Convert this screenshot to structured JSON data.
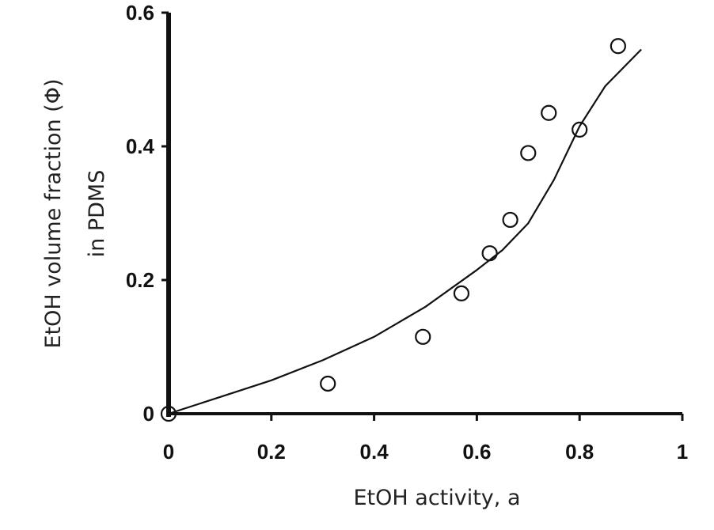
{
  "chart_data": {
    "type": "scatter",
    "xlabel": "EtOH activity, a",
    "ylabel": [
      "EtOH volume fraction (Φ)",
      "in PDMS"
    ],
    "xlim": [
      0,
      1
    ],
    "ylim": [
      0,
      0.6
    ],
    "x_ticks": [
      {
        "value": 0,
        "label": "0"
      },
      {
        "value": 0.2,
        "label": "0.2"
      },
      {
        "value": 0.4,
        "label": "0.4"
      },
      {
        "value": 0.6,
        "label": "0.6"
      },
      {
        "value": 0.8,
        "label": "0.8"
      },
      {
        "value": 1,
        "label": "1"
      }
    ],
    "y_ticks": [
      {
        "value": 0,
        "label": "0"
      },
      {
        "value": 0.2,
        "label": "0.2"
      },
      {
        "value": 0.4,
        "label": "0.4"
      },
      {
        "value": 0.6,
        "label": "0.6"
      }
    ],
    "points": [
      {
        "x": 0,
        "y": 0
      },
      {
        "x": 0.31,
        "y": 0.045
      },
      {
        "x": 0.495,
        "y": 0.115
      },
      {
        "x": 0.57,
        "y": 0.18
      },
      {
        "x": 0.625,
        "y": 0.24
      },
      {
        "x": 0.665,
        "y": 0.29
      },
      {
        "x": 0.7,
        "y": 0.39
      },
      {
        "x": 0.74,
        "y": 0.45
      },
      {
        "x": 0.8,
        "y": 0.425
      },
      {
        "x": 0.875,
        "y": 0.55
      }
    ],
    "curve": [
      {
        "x": 0,
        "y": 0
      },
      {
        "x": 0.1,
        "y": 0.025
      },
      {
        "x": 0.2,
        "y": 0.05
      },
      {
        "x": 0.3,
        "y": 0.08
      },
      {
        "x": 0.4,
        "y": 0.115
      },
      {
        "x": 0.5,
        "y": 0.16
      },
      {
        "x": 0.6,
        "y": 0.215
      },
      {
        "x": 0.65,
        "y": 0.245
      },
      {
        "x": 0.7,
        "y": 0.285
      },
      {
        "x": 0.75,
        "y": 0.35
      },
      {
        "x": 0.8,
        "y": 0.43
      },
      {
        "x": 0.85,
        "y": 0.49
      },
      {
        "x": 0.92,
        "y": 0.545
      }
    ],
    "grid": false,
    "legend": "none",
    "colors": {
      "ink": "#111111",
      "background": "#ffffff"
    }
  }
}
